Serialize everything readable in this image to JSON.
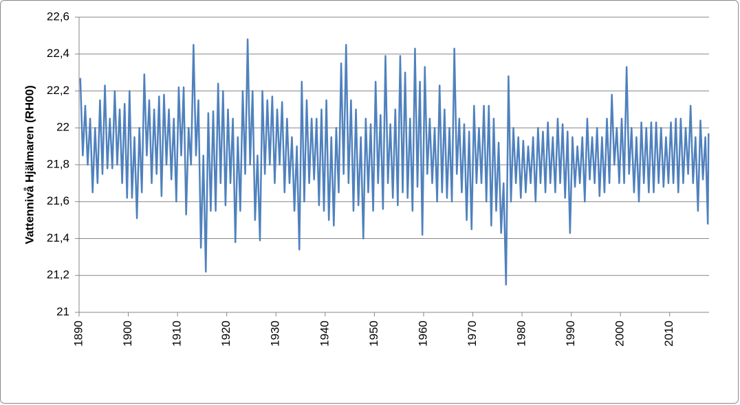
{
  "chart_data": {
    "type": "line",
    "ylabel": "Vattennivå Hjälmaren (RH00)",
    "xlim": [
      1890,
      2018
    ],
    "xticks": [
      1890,
      1900,
      1910,
      1920,
      1930,
      1940,
      1950,
      1960,
      1970,
      1980,
      1990,
      2000,
      2010
    ],
    "ylim": [
      21,
      22.6
    ],
    "yticks": [
      21,
      {
        "value": 21.2,
        "label": "21,2"
      },
      {
        "value": 21.4,
        "label": "21,4"
      },
      {
        "value": 21.6,
        "label": "21,6"
      },
      {
        "value": 21.8,
        "label": "21,8"
      },
      22,
      {
        "value": 22.2,
        "label": "22,2"
      },
      {
        "value": 22.4,
        "label": "22,4"
      },
      {
        "value": 22.6,
        "label": "22,6"
      }
    ],
    "grid": true,
    "x": [
      1890.25,
      1890.75,
      1891.25,
      1891.75,
      1892.25,
      1892.75,
      1893.25,
      1893.75,
      1894.25,
      1894.75,
      1895.25,
      1895.75,
      1896.25,
      1896.75,
      1897.25,
      1897.75,
      1898.25,
      1898.75,
      1899.25,
      1899.75,
      1900.25,
      1900.75,
      1901.25,
      1901.75,
      1902.25,
      1902.75,
      1903.25,
      1903.75,
      1904.25,
      1904.75,
      1905.25,
      1905.75,
      1906.25,
      1906.75,
      1907.25,
      1907.75,
      1908.25,
      1908.75,
      1909.25,
      1909.75,
      1910.25,
      1910.75,
      1911.25,
      1911.75,
      1912.25,
      1912.75,
      1913.25,
      1913.75,
      1914.25,
      1914.75,
      1915.25,
      1915.75,
      1916.25,
      1916.75,
      1917.25,
      1917.75,
      1918.25,
      1918.75,
      1919.25,
      1919.75,
      1920.25,
      1920.75,
      1921.25,
      1921.75,
      1922.25,
      1922.75,
      1923.25,
      1923.75,
      1924.25,
      1924.75,
      1925.25,
      1925.75,
      1926.25,
      1926.75,
      1927.25,
      1927.75,
      1928.25,
      1928.75,
      1929.25,
      1929.75,
      1930.25,
      1930.75,
      1931.25,
      1931.75,
      1932.25,
      1932.75,
      1933.25,
      1933.75,
      1934.25,
      1934.75,
      1935.25,
      1935.75,
      1936.25,
      1936.75,
      1937.25,
      1937.75,
      1938.25,
      1938.75,
      1939.25,
      1939.75,
      1940.25,
      1940.75,
      1941.25,
      1941.75,
      1942.25,
      1942.75,
      1943.25,
      1943.75,
      1944.25,
      1944.75,
      1945.25,
      1945.75,
      1946.25,
      1946.75,
      1947.25,
      1947.75,
      1948.25,
      1948.75,
      1949.25,
      1949.75,
      1950.25,
      1950.75,
      1951.25,
      1951.75,
      1952.25,
      1952.75,
      1953.25,
      1953.75,
      1954.25,
      1954.75,
      1955.25,
      1955.75,
      1956.25,
      1956.75,
      1957.25,
      1957.75,
      1958.25,
      1958.75,
      1959.25,
      1959.75,
      1960.25,
      1960.75,
      1961.25,
      1961.75,
      1962.25,
      1962.75,
      1963.25,
      1963.75,
      1964.25,
      1964.75,
      1965.25,
      1965.75,
      1966.25,
      1966.75,
      1967.25,
      1967.75,
      1968.25,
      1968.75,
      1969.25,
      1969.75,
      1970.25,
      1970.75,
      1971.25,
      1971.75,
      1972.25,
      1972.75,
      1973.25,
      1973.75,
      1974.25,
      1974.75,
      1975.25,
      1975.75,
      1976.25,
      1976.75,
      1977.25,
      1977.75,
      1978.25,
      1978.75,
      1979.25,
      1979.75,
      1980.25,
      1980.75,
      1981.25,
      1981.75,
      1982.25,
      1982.75,
      1983.25,
      1983.75,
      1984.25,
      1984.75,
      1985.25,
      1985.75,
      1986.25,
      1986.75,
      1987.25,
      1987.75,
      1988.25,
      1988.75,
      1989.25,
      1989.75,
      1990.25,
      1990.75,
      1991.25,
      1991.75,
      1992.25,
      1992.75,
      1993.25,
      1993.75,
      1994.25,
      1994.75,
      1995.25,
      1995.75,
      1996.25,
      1996.75,
      1997.25,
      1997.75,
      1998.25,
      1998.75,
      1999.25,
      1999.75,
      2000.25,
      2000.75,
      2001.25,
      2001.75,
      2002.25,
      2002.75,
      2003.25,
      2003.75,
      2004.25,
      2004.75,
      2005.25,
      2005.75,
      2006.25,
      2006.75,
      2007.25,
      2007.75,
      2008.25,
      2008.75,
      2009.25,
      2009.75,
      2010.25,
      2010.75,
      2011.25,
      2011.75,
      2012.25,
      2012.75,
      2013.25,
      2013.75,
      2014.25,
      2014.75,
      2015.25,
      2015.75,
      2016.25,
      2016.75,
      2017.25,
      2017.75,
      2017.9
    ],
    "series": [
      {
        "color": "#4f81bd",
        "values": [
          22.27,
          21.85,
          22.12,
          21.8,
          22.05,
          21.65,
          22.0,
          21.7,
          22.15,
          21.75,
          22.23,
          21.78,
          22.05,
          21.78,
          22.2,
          21.8,
          22.1,
          21.7,
          22.13,
          21.62,
          22.2,
          21.62,
          21.95,
          21.51,
          22.0,
          21.65,
          22.29,
          21.85,
          22.15,
          21.7,
          22.1,
          21.75,
          22.17,
          21.63,
          22.18,
          21.8,
          22.1,
          21.72,
          22.05,
          21.6,
          22.22,
          21.85,
          22.22,
          21.53,
          22.0,
          21.8,
          22.45,
          21.85,
          22.15,
          21.35,
          21.85,
          21.22,
          22.08,
          21.55,
          22.09,
          21.55,
          22.24,
          21.7,
          22.2,
          21.58,
          22.1,
          21.7,
          22.05,
          21.38,
          21.95,
          21.55,
          22.2,
          21.75,
          22.48,
          21.8,
          22.2,
          21.5,
          21.85,
          21.39,
          22.2,
          21.75,
          22.15,
          21.8,
          22.17,
          21.7,
          22.1,
          21.8,
          22.14,
          21.65,
          22.05,
          21.7,
          21.95,
          21.55,
          21.9,
          21.34,
          22.25,
          21.6,
          22.15,
          21.7,
          22.05,
          21.72,
          22.05,
          21.58,
          22.1,
          21.55,
          22.15,
          21.5,
          21.95,
          21.47,
          22.0,
          21.65,
          22.35,
          21.75,
          22.45,
          21.7,
          22.15,
          21.55,
          22.1,
          21.58,
          21.95,
          21.4,
          22.05,
          21.65,
          22.02,
          21.55,
          22.25,
          21.7,
          22.07,
          21.56,
          22.39,
          21.7,
          22.02,
          21.62,
          22.1,
          21.58,
          22.39,
          21.65,
          22.3,
          21.62,
          22.05,
          21.55,
          22.43,
          21.68,
          22.25,
          21.42,
          22.33,
          21.75,
          22.05,
          21.7,
          22.0,
          21.6,
          22.23,
          21.65,
          22.1,
          21.62,
          22.0,
          21.6,
          22.43,
          21.75,
          22.05,
          21.65,
          22.02,
          21.5,
          21.98,
          21.45,
          22.12,
          21.7,
          22.0,
          21.7,
          22.12,
          21.6,
          22.12,
          21.47,
          22.05,
          21.55,
          21.92,
          21.43,
          21.7,
          21.15,
          22.28,
          21.6,
          22.0,
          21.7,
          21.95,
          21.62,
          21.93,
          21.65,
          21.9,
          21.7,
          21.95,
          21.6,
          22.0,
          21.7,
          21.98,
          21.65,
          22.03,
          21.7,
          21.95,
          21.65,
          22.05,
          21.7,
          22.02,
          21.62,
          21.98,
          21.43,
          21.95,
          21.68,
          21.9,
          21.7,
          21.95,
          21.6,
          22.05,
          21.72,
          21.95,
          21.7,
          22.0,
          21.63,
          21.95,
          21.65,
          22.05,
          21.7,
          22.18,
          21.8,
          22.0,
          21.7,
          22.05,
          21.7,
          22.33,
          21.75,
          22.0,
          21.65,
          21.95,
          21.6,
          22.03,
          21.7,
          22.0,
          21.65,
          22.03,
          21.65,
          22.03,
          21.7,
          22.0,
          21.68,
          21.95,
          21.7,
          22.03,
          21.7,
          22.05,
          21.65,
          22.05,
          21.7,
          22.0,
          21.75,
          22.12,
          21.7,
          21.95,
          21.55,
          22.04,
          21.72,
          21.95,
          21.48,
          21.97
        ]
      }
    ]
  }
}
